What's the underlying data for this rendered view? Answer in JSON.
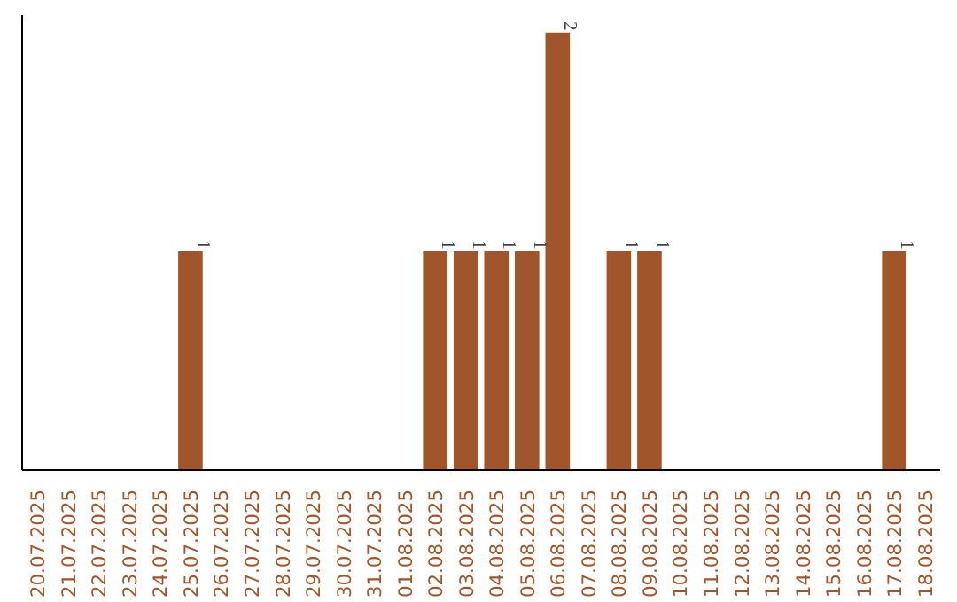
{
  "chart_data": {
    "type": "bar",
    "categories": [
      "20.07.2025",
      "21.07.2025",
      "22.07.2025",
      "23.07.2025",
      "24.07.2025",
      "25.07.2025",
      "26.07.2025",
      "27.07.2025",
      "28.07.2025",
      "29.07.2025",
      "30.07.2025",
      "31.07.2025",
      "01.08.2025",
      "02.08.2025",
      "03.08.2025",
      "04.08.2025",
      "05.08.2025",
      "06.08.2025",
      "07.08.2025",
      "08.08.2025",
      "09.08.2025",
      "10.08.2025",
      "11.08.2025",
      "12.08.2025",
      "13.08.2025",
      "14.08.2025",
      "15.08.2025",
      "16.08.2025",
      "17.08.2025",
      "18.08.2025"
    ],
    "values": [
      0,
      0,
      0,
      0,
      0,
      1,
      0,
      0,
      0,
      0,
      0,
      0,
      0,
      1,
      1,
      1,
      1,
      2,
      0,
      1,
      1,
      0,
      0,
      0,
      0,
      0,
      0,
      0,
      1,
      0
    ],
    "color": "#a0562a",
    "value_labels": [
      null,
      null,
      null,
      null,
      null,
      "1",
      null,
      null,
      null,
      null,
      null,
      null,
      null,
      "1",
      "1",
      "1",
      "1",
      "2",
      null,
      "1",
      "1",
      null,
      null,
      null,
      null,
      null,
      null,
      null,
      "1",
      null
    ],
    "grid": false
  }
}
